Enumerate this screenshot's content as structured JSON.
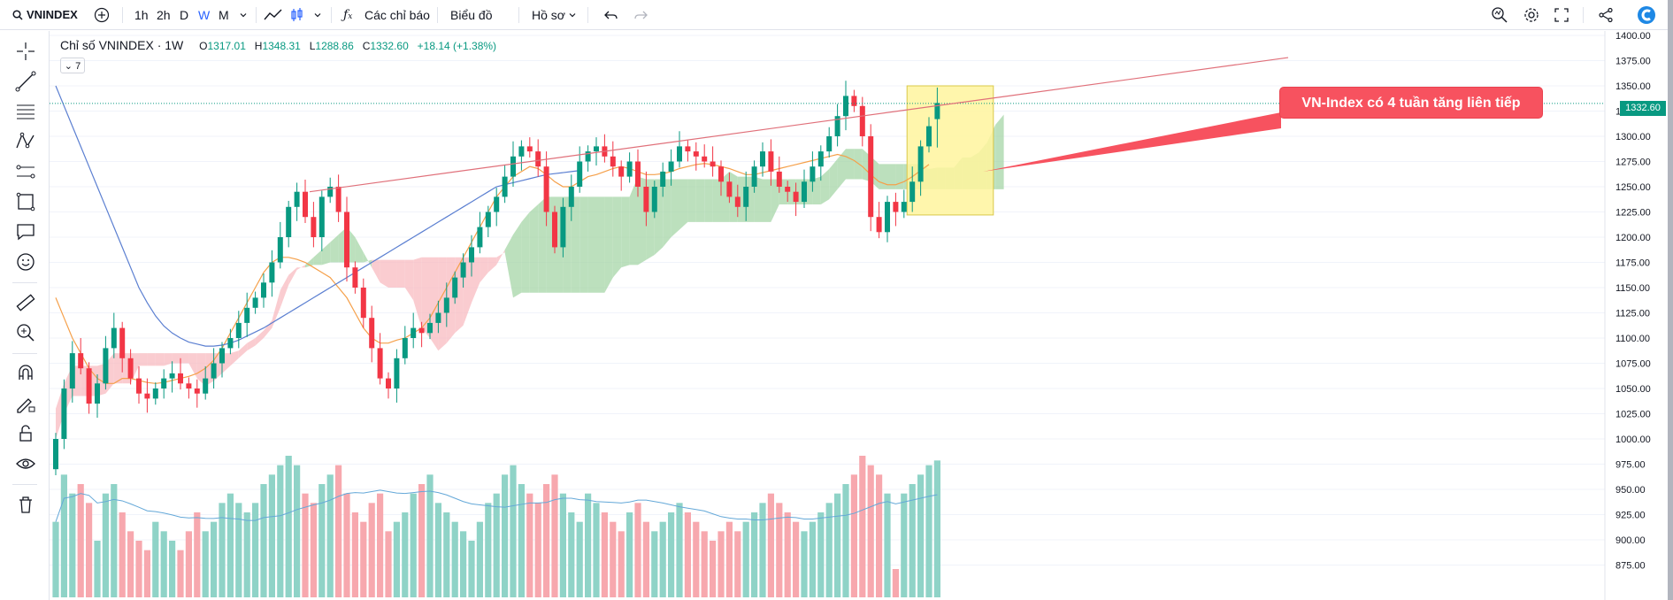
{
  "toolbar": {
    "symbol": "VNINDEX",
    "intervals": [
      "1h",
      "2h",
      "D",
      "W",
      "M"
    ],
    "indicators_label": "Các chỉ báo",
    "chart_label": "Biểu đồ",
    "profile_label": "Hồ sơ"
  },
  "legend": {
    "title": "Chỉ số VNINDEX · 1W",
    "open_key": "O",
    "open": "1317.01",
    "high_key": "H",
    "high": "1348.31",
    "low_key": "L",
    "low": "1288.86",
    "close_key": "C",
    "close": "1332.60",
    "change": "+18.14 (+1.38%)",
    "collapse_count": "7"
  },
  "annotation": {
    "callout_text": "VN-Index có 4 tuần tăng liên tiếp"
  },
  "price_scale": {
    "last_price": "1332.60"
  },
  "colors": {
    "up": "#089981",
    "down": "#f23645",
    "trendline": "#e0707a",
    "highlight_box": "#fff59d",
    "cloud_bull": "#a5d6a7",
    "cloud_bear": "#f8bbc0",
    "ma_short": "#f5a04a",
    "ma_long": "#5b7fd1"
  },
  "chart_data": {
    "type": "candlestick",
    "interval": "1W",
    "ylim": [
      850,
      1400
    ],
    "y_ticks": [
      "1400.00",
      "1375.00",
      "1350.00",
      "1325.00",
      "1300.00",
      "1275.00",
      "1250.00",
      "1225.00",
      "1200.00",
      "1175.00",
      "1150.00",
      "1125.00",
      "1100.00",
      "1075.00",
      "1050.00",
      "1025.00",
      "1000.00",
      "975.00",
      "950.00",
      "925.00",
      "900.00",
      "875.00"
    ],
    "last_candle": {
      "open": 1317.01,
      "high": 1348.31,
      "low": 1288.86,
      "close": 1332.6
    },
    "closes": [
      1000,
      1050,
      1085,
      1070,
      1035,
      1055,
      1090,
      1110,
      1080,
      1060,
      1045,
      1040,
      1050,
      1060,
      1065,
      1055,
      1050,
      1045,
      1060,
      1075,
      1090,
      1100,
      1115,
      1130,
      1140,
      1155,
      1175,
      1200,
      1230,
      1245,
      1220,
      1200,
      1240,
      1250,
      1225,
      1170,
      1150,
      1120,
      1090,
      1060,
      1050,
      1080,
      1100,
      1110,
      1105,
      1115,
      1125,
      1140,
      1160,
      1175,
      1190,
      1210,
      1225,
      1240,
      1260,
      1280,
      1290,
      1285,
      1270,
      1225,
      1190,
      1230,
      1250,
      1275,
      1285,
      1290,
      1280,
      1270,
      1260,
      1275,
      1250,
      1225,
      1250,
      1265,
      1275,
      1290,
      1285,
      1280,
      1275,
      1270,
      1255,
      1240,
      1230,
      1250,
      1270,
      1285,
      1265,
      1250,
      1245,
      1235,
      1255,
      1270,
      1285,
      1300,
      1320,
      1340,
      1330,
      1300,
      1220,
      1205,
      1235,
      1225,
      1235,
      1255,
      1290,
      1310,
      1333
    ],
    "volumes": [
      930,
      980,
      960,
      970,
      950,
      910,
      960,
      970,
      940,
      920,
      910,
      900,
      930,
      920,
      910,
      900,
      920,
      940,
      920,
      930,
      950,
      960,
      950,
      940,
      950,
      970,
      980,
      990,
      1000,
      990,
      960,
      950,
      970,
      980,
      990,
      960,
      940,
      930,
      950,
      960,
      920,
      930,
      940,
      960,
      970,
      980,
      950,
      940,
      930,
      920,
      910,
      930,
      950,
      960,
      980,
      990,
      970,
      960,
      950,
      970,
      980,
      960,
      940,
      930,
      960,
      950,
      940,
      930,
      920,
      940,
      950,
      930,
      920,
      930,
      940,
      950,
      940,
      930,
      920,
      910,
      920,
      930,
      920,
      930,
      940,
      950,
      960,
      950,
      940,
      930,
      920,
      930,
      940,
      950,
      960,
      970,
      980,
      1000,
      990,
      980,
      960,
      880,
      960,
      970,
      980,
      990,
      995
    ],
    "ma_short": [
      1140,
      1120,
      1100,
      1085,
      1070,
      1060,
      1055,
      1055,
      1060,
      1060,
      1058,
      1056,
      1055,
      1056,
      1058,
      1060,
      1062,
      1065,
      1070,
      1078,
      1090,
      1105,
      1120,
      1135,
      1150,
      1165,
      1175,
      1180,
      1180,
      1178,
      1175,
      1170,
      1165,
      1160,
      1150,
      1140,
      1125,
      1110,
      1100,
      1095,
      1095,
      1098,
      1100,
      1105,
      1110,
      1120,
      1135,
      1150,
      1165,
      1180,
      1195,
      1210,
      1225,
      1240,
      1250,
      1260,
      1265,
      1270,
      1268,
      1262,
      1255,
      1250,
      1250,
      1255,
      1260,
      1262,
      1265,
      1268,
      1270,
      1268,
      1265,
      1262,
      1262,
      1263,
      1265,
      1268,
      1270,
      1272,
      1273,
      1272,
      1270,
      1268,
      1265,
      1262,
      1262,
      1264,
      1266,
      1268,
      1270,
      1272,
      1274,
      1276,
      1278,
      1280,
      1282,
      1280,
      1276,
      1270,
      1262,
      1255,
      1252,
      1252,
      1255,
      1260,
      1266,
      1272
    ],
    "ma_long": [
      1350,
      1330,
      1310,
      1290,
      1270,
      1250,
      1230,
      1210,
      1190,
      1170,
      1150,
      1135,
      1122,
      1112,
      1105,
      1100,
      1096,
      1094,
      1092,
      1092,
      1093,
      1095,
      1098,
      1102,
      1106,
      1110,
      1115,
      1120,
      1125,
      1130,
      1135,
      1140,
      1145,
      1150,
      1155,
      1160,
      1165,
      1170,
      1175,
      1180,
      1185,
      1190,
      1195,
      1200,
      1205,
      1210,
      1215,
      1220,
      1225,
      1230,
      1235,
      1240,
      1245,
      1250,
      1252,
      1254,
      1256,
      1258,
      1260,
      1262,
      1263,
      1264,
      1265,
      1266
    ]
  }
}
